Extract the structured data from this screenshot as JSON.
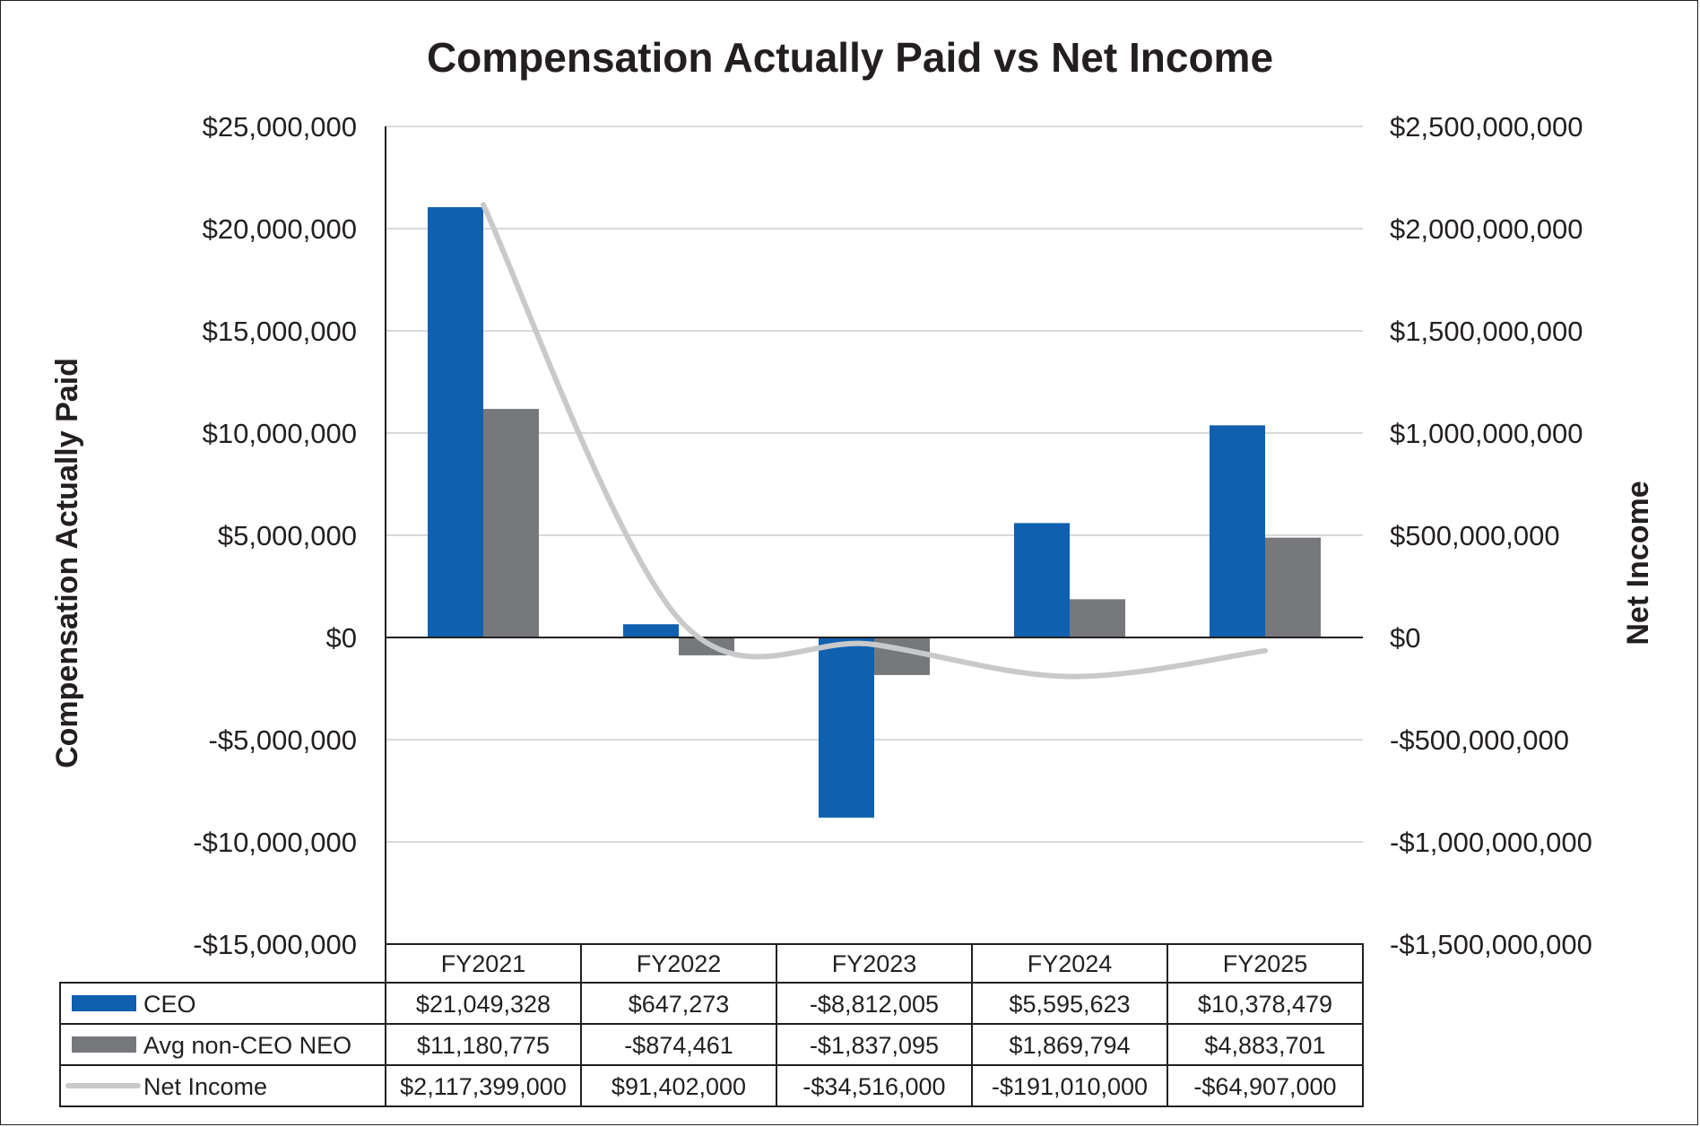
{
  "chart_data": {
    "type": "bar",
    "title": "Compensation Actually Paid vs Net Income",
    "categories": [
      "FY2021",
      "FY2022",
      "FY2023",
      "FY2024",
      "FY2025"
    ],
    "ylabel": "Compensation Actually Paid",
    "y2label": "Net Income",
    "ylim": [
      -15000000,
      25000000
    ],
    "y2lim": [
      -1500000000,
      2500000000
    ],
    "yticks": [
      {
        "value": 25000000,
        "label": "$25,000,000"
      },
      {
        "value": 20000000,
        "label": "$20,000,000"
      },
      {
        "value": 15000000,
        "label": "$15,000,000"
      },
      {
        "value": 10000000,
        "label": "$10,000,000"
      },
      {
        "value": 5000000,
        "label": "$5,000,000"
      },
      {
        "value": 0,
        "label": "$0"
      },
      {
        "value": -5000000,
        "label": "-$5,000,000"
      },
      {
        "value": -10000000,
        "label": "-$10,000,000"
      },
      {
        "value": -15000000,
        "label": "-$15,000,000"
      }
    ],
    "y2ticks": [
      {
        "value": 2500000000,
        "label": "$2,500,000,000"
      },
      {
        "value": 2000000000,
        "label": "$2,000,000,000"
      },
      {
        "value": 1500000000,
        "label": "$1,500,000,000"
      },
      {
        "value": 1000000000,
        "label": "$1,000,000,000"
      },
      {
        "value": 500000000,
        "label": "$500,000,000"
      },
      {
        "value": 0,
        "label": "$0"
      },
      {
        "value": -500000000,
        "label": "-$500,000,000"
      },
      {
        "value": -1000000000,
        "label": "-$1,000,000,000"
      },
      {
        "value": -1500000000,
        "label": "-$1,500,000,000"
      }
    ],
    "series": [
      {
        "name": "CEO",
        "kind": "bar",
        "axis": "left",
        "color": "#1060b0",
        "values": [
          21049328,
          647273,
          -8812005,
          5595623,
          10378479
        ],
        "labels": [
          "$21,049,328",
          "$647,273",
          "-$8,812,005",
          "$5,595,623",
          "$10,378,479"
        ]
      },
      {
        "name": "Avg non-CEO NEO",
        "kind": "bar",
        "axis": "left",
        "color": "#77787b",
        "values": [
          11180775,
          -874461,
          -1837095,
          1869794,
          4883701
        ],
        "labels": [
          "$11,180,775",
          "-$874,461",
          "-$1,837,095",
          "$1,869,794",
          "$4,883,701"
        ]
      },
      {
        "name": "Net Income",
        "kind": "line",
        "axis": "right",
        "color": "#c8c9ca",
        "values": [
          2117399000,
          91402000,
          -34516000,
          -191010000,
          -64907000
        ],
        "labels": [
          "$2,117,399,000",
          "$91,402,000",
          "-$34,516,000",
          "-$191,010,000",
          "-$64,907,000"
        ]
      }
    ],
    "grid": true,
    "legend": "bottom-table"
  }
}
